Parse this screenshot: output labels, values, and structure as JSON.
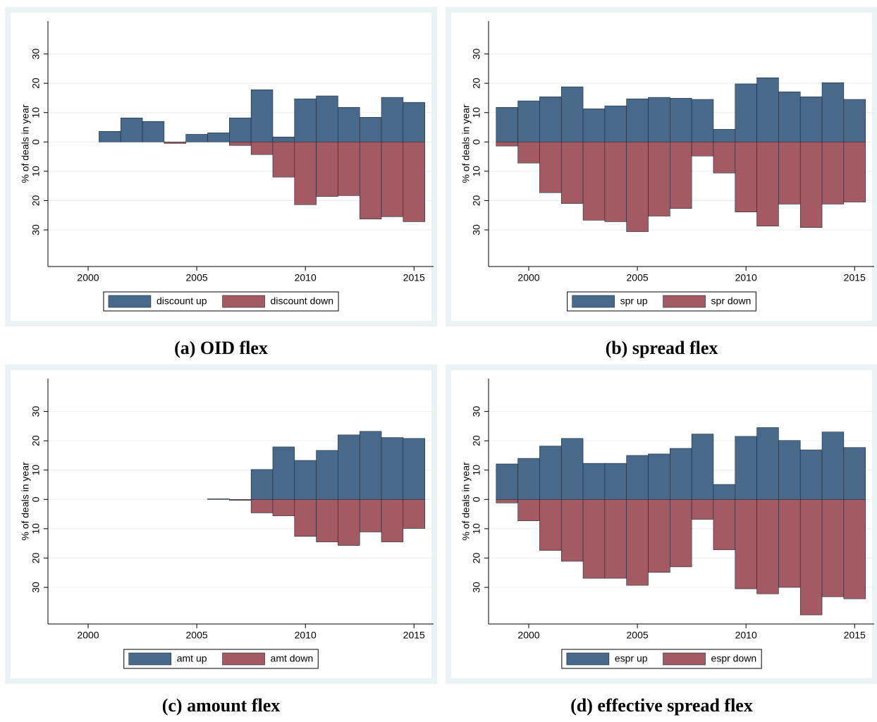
{
  "chart_data": [
    {
      "type": "bar",
      "caption": "(a) OID flex",
      "y_label": "% of deals in year",
      "x": [
        1999,
        2000,
        2001,
        2002,
        2003,
        2004,
        2005,
        2006,
        2007,
        2008,
        2009,
        2010,
        2011,
        2012,
        2013,
        2014,
        2015
      ],
      "series": [
        {
          "name": "discount up",
          "color": "#49698b",
          "values": [
            null,
            null,
            3.6,
            8.2,
            7.0,
            0,
            2.6,
            3.1,
            8.2,
            17.8,
            1.7,
            14.7,
            15.7,
            11.8,
            8.4,
            15.2,
            13.5
          ]
        },
        {
          "name": "discount down",
          "color": "#a45a62",
          "values": [
            null,
            null,
            0,
            0,
            0,
            -0.5,
            0,
            0,
            -1.2,
            -4.3,
            -12.0,
            -21.4,
            -18.6,
            -18.3,
            -26.3,
            -25.5,
            -27.2
          ]
        }
      ],
      "xlim": [
        1998.15,
        2015.9
      ],
      "xticks": [
        2000,
        2005,
        2010,
        2015
      ],
      "ylim": [
        -42.5,
        41.2
      ],
      "yticks": [
        {
          "value": -30,
          "label": "30"
        },
        {
          "value": -20,
          "label": "20"
        },
        {
          "value": -10,
          "label": "10"
        },
        0,
        10,
        20,
        30
      ],
      "grid": true
    },
    {
      "type": "bar",
      "caption": "(b) spread flex",
      "y_label": "% of deals in year",
      "x": [
        1999,
        2000,
        2001,
        2002,
        2003,
        2004,
        2005,
        2006,
        2007,
        2008,
        2009,
        2010,
        2011,
        2012,
        2013,
        2014,
        2015
      ],
      "series": [
        {
          "name": "spr up",
          "color": "#49698b",
          "values": [
            11.8,
            14.0,
            15.4,
            18.8,
            11.3,
            12.3,
            14.7,
            15.2,
            14.9,
            14.5,
            4.3,
            19.8,
            21.9,
            17.1,
            15.4,
            20.2,
            14.5
          ]
        },
        {
          "name": "spr down",
          "color": "#a45a62",
          "values": [
            -1.4,
            -7.2,
            -17.3,
            -21.0,
            -26.7,
            -27.2,
            -30.6,
            -25.3,
            -22.7,
            -4.8,
            -10.6,
            -23.9,
            -28.7,
            -21.2,
            -29.2,
            -21.2,
            -20.5
          ]
        }
      ],
      "xlim": [
        1998.15,
        2015.9
      ],
      "xticks": [
        2000,
        2005,
        2010,
        2015
      ],
      "ylim": [
        -42.5,
        41.2
      ],
      "yticks": [
        {
          "value": -30,
          "label": "30"
        },
        {
          "value": -20,
          "label": "20"
        },
        {
          "value": -10,
          "label": "10"
        },
        0,
        10,
        20,
        30
      ],
      "grid": true
    },
    {
      "type": "bar",
      "caption": "(c) amount flex",
      "y_label": "% of deals in year",
      "x": [
        1999,
        2000,
        2001,
        2002,
        2003,
        2004,
        2005,
        2006,
        2007,
        2008,
        2009,
        2010,
        2011,
        2012,
        2013,
        2014,
        2015
      ],
      "series": [
        {
          "name": "amt up",
          "color": "#49698b",
          "values": [
            null,
            null,
            null,
            null,
            null,
            null,
            null,
            0.2,
            0,
            10.2,
            17.9,
            13.3,
            16.7,
            22.0,
            23.2,
            21.1,
            20.8
          ]
        },
        {
          "name": "amt down",
          "color": "#a45a62",
          "values": [
            null,
            null,
            null,
            null,
            null,
            null,
            null,
            0,
            -0.3,
            -4.6,
            -5.6,
            -12.6,
            -14.5,
            -15.7,
            -11.1,
            -14.5,
            -9.9
          ]
        }
      ],
      "xlim": [
        1998.15,
        2015.9
      ],
      "xticks": [
        2000,
        2005,
        2010,
        2015
      ],
      "ylim": [
        -42.5,
        41.2
      ],
      "yticks": [
        {
          "value": -30,
          "label": "30"
        },
        {
          "value": -20,
          "label": "20"
        },
        {
          "value": -10,
          "label": "10"
        },
        0,
        10,
        20,
        30
      ],
      "grid": true
    },
    {
      "type": "bar",
      "caption": "(d) effective spread flex",
      "y_label": "% of deals in year",
      "x": [
        1999,
        2000,
        2001,
        2002,
        2003,
        2004,
        2005,
        2006,
        2007,
        2008,
        2009,
        2010,
        2011,
        2012,
        2013,
        2014,
        2015
      ],
      "series": [
        {
          "name": "espr up",
          "color": "#49698b",
          "values": [
            12.1,
            14.0,
            18.2,
            20.8,
            12.3,
            12.3,
            15.0,
            15.5,
            17.4,
            22.3,
            5.1,
            21.5,
            24.5,
            20.1,
            16.9,
            23.0,
            17.7
          ]
        },
        {
          "name": "espr down",
          "color": "#a45a62",
          "values": [
            -1.2,
            -7.3,
            -17.4,
            -21.1,
            -26.9,
            -26.9,
            -29.3,
            -24.9,
            -23.0,
            -6.8,
            -17.2,
            -30.5,
            -32.2,
            -30.0,
            -39.4,
            -33.2,
            -33.9
          ]
        }
      ],
      "xlim": [
        1998.15,
        2015.9
      ],
      "xticks": [
        2000,
        2005,
        2010,
        2015
      ],
      "ylim": [
        -42.5,
        41.2
      ],
      "yticks": [
        {
          "value": -30,
          "label": "30"
        },
        {
          "value": -20,
          "label": "20"
        },
        {
          "value": -10,
          "label": "10"
        },
        0,
        10,
        20,
        30
      ],
      "grid": true
    }
  ]
}
